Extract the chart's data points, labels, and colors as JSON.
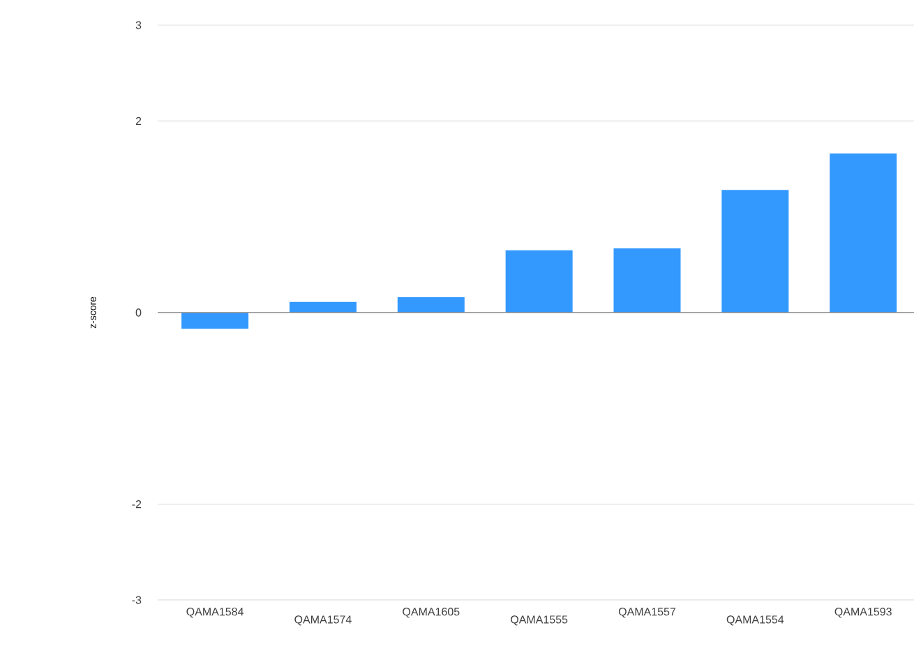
{
  "chart_data": {
    "type": "bar",
    "ylabel": "z-score",
    "categories": [
      "QAMA1584",
      "QAMA1574",
      "QAMA1605",
      "QAMA1555",
      "QAMA1557",
      "QAMA1554",
      "QAMA1593"
    ],
    "values": [
      -0.17,
      0.11,
      0.16,
      0.65,
      0.67,
      1.28,
      1.66
    ],
    "color": "#3399ff",
    "ylim": [
      -3,
      3
    ],
    "yticks": [
      -3,
      -2,
      0,
      2,
      3
    ],
    "grid": "y"
  }
}
